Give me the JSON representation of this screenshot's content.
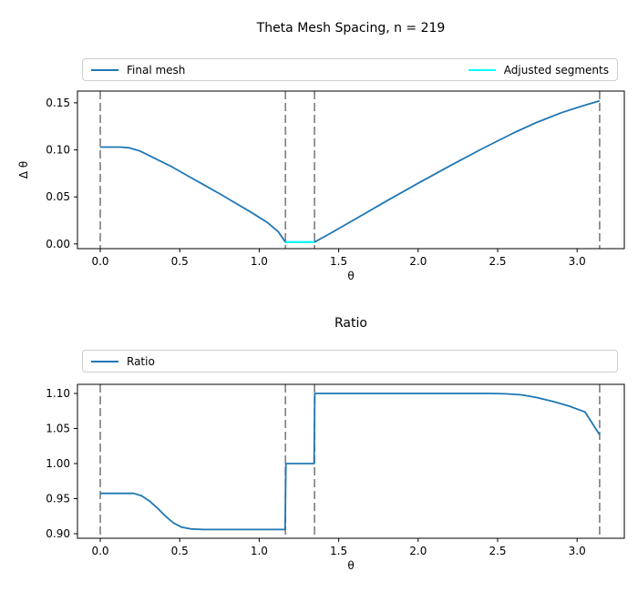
{
  "page": {
    "background": "#ffffff",
    "text_color": "#000000"
  },
  "chart_data": [
    {
      "type": "line",
      "title": "Theta Mesh Spacing, n = 219",
      "xlabel": "θ",
      "ylabel": "Δ θ",
      "xlim": [
        -0.1434,
        3.297
      ],
      "ylim": [
        -0.005,
        0.1625
      ],
      "grid": false,
      "xticks": {
        "values": [
          0.0,
          0.5,
          1.0,
          1.5,
          2.0,
          2.5,
          3.0
        ],
        "labels": [
          "0.0",
          "0.5",
          "1.0",
          "1.5",
          "2.0",
          "2.5",
          "3.0"
        ]
      },
      "yticks": {
        "values": [
          0.0,
          0.05,
          0.1,
          0.15
        ],
        "labels": [
          "0.00",
          "0.05",
          "0.10",
          "0.15"
        ]
      },
      "legend": {
        "position": "above-full-width",
        "entries": [
          {
            "label": "Final mesh",
            "color": "#1f77b4"
          },
          {
            "label": "Adjusted segments",
            "color": "#00ffff"
          }
        ]
      },
      "vlines": {
        "x": [
          0,
          1.165,
          1.348,
          3.1416
        ],
        "color": "#848484",
        "style": "dashed"
      },
      "series": [
        {
          "name": "Final mesh",
          "color": "#1f77b4",
          "width": 1.8,
          "points": [
            [
              0,
              0.103
            ],
            [
              0.13,
              0.103
            ],
            [
              0.18,
              0.1022
            ],
            [
              0.25,
              0.0988
            ],
            [
              0.35,
              0.0905
            ],
            [
              0.45,
              0.082
            ],
            [
              0.55,
              0.0725
            ],
            [
              0.65,
              0.063
            ],
            [
              0.75,
              0.0535
            ],
            [
              0.85,
              0.0435
            ],
            [
              0.95,
              0.0335
            ],
            [
              1.05,
              0.023
            ],
            [
              1.12,
              0.013
            ],
            [
              1.165,
              0.002
            ],
            [
              1.348,
              0.002
            ],
            [
              1.45,
              0.0115
            ],
            [
              1.6,
              0.026
            ],
            [
              1.8,
              0.0455
            ],
            [
              2.0,
              0.0645
            ],
            [
              2.2,
              0.083
            ],
            [
              2.4,
              0.101
            ],
            [
              2.6,
              0.118
            ],
            [
              2.75,
              0.1295
            ],
            [
              2.9,
              0.1395
            ],
            [
              3.0,
              0.145
            ],
            [
              3.08,
              0.149
            ],
            [
              3.1416,
              0.152
            ]
          ]
        },
        {
          "name": "Adjusted segments",
          "color": "#00ffff",
          "width": 2.2,
          "points": [
            [
              1.165,
              0.002
            ],
            [
              1.348,
              0.002
            ]
          ]
        }
      ]
    },
    {
      "type": "line",
      "title": "Ratio",
      "xlabel": "θ",
      "ylabel": "",
      "xlim": [
        -0.1434,
        3.297
      ],
      "ylim": [
        0.8935,
        1.113
      ],
      "grid": false,
      "xticks": {
        "values": [
          0.0,
          0.5,
          1.0,
          1.5,
          2.0,
          2.5,
          3.0
        ],
        "labels": [
          "0.0",
          "0.5",
          "1.0",
          "1.5",
          "2.0",
          "2.5",
          "3.0"
        ]
      },
      "yticks": {
        "values": [
          0.9,
          0.95,
          1.0,
          1.05,
          1.1
        ],
        "labels": [
          "0.90",
          "0.95",
          "1.00",
          "1.05",
          "1.10"
        ]
      },
      "legend": {
        "position": "above-full-width",
        "entries": [
          {
            "label": "Ratio",
            "color": "#1f77b4"
          }
        ]
      },
      "vlines": {
        "x": [
          0,
          1.165,
          1.348,
          3.1416
        ],
        "color": "#848484",
        "style": "dashed"
      },
      "series": [
        {
          "name": "Ratio",
          "color": "#1f77b4",
          "width": 1.8,
          "points": [
            [
              0,
              0.9575
            ],
            [
              0.21,
              0.9575
            ],
            [
              0.26,
              0.954
            ],
            [
              0.31,
              0.9465
            ],
            [
              0.36,
              0.9365
            ],
            [
              0.41,
              0.925
            ],
            [
              0.46,
              0.9155
            ],
            [
              0.51,
              0.9095
            ],
            [
              0.57,
              0.9068
            ],
            [
              0.65,
              0.906
            ],
            [
              1.163,
              0.906
            ],
            [
              1.168,
              1.0
            ],
            [
              1.345,
              1.0
            ],
            [
              1.35,
              1.1
            ],
            [
              1.45,
              1.1
            ],
            [
              2.45,
              1.1
            ],
            [
              2.55,
              1.0995
            ],
            [
              2.65,
              1.098
            ],
            [
              2.75,
              1.094
            ],
            [
              2.85,
              1.0885
            ],
            [
              2.95,
              1.082
            ],
            [
              3.05,
              1.0735
            ],
            [
              3.1416,
              1.041
            ]
          ]
        }
      ]
    }
  ]
}
